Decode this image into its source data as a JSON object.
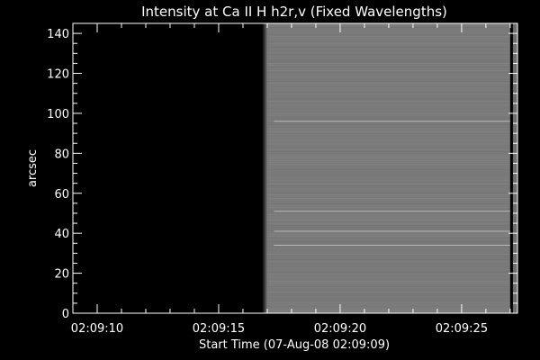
{
  "chart_data": {
    "type": "heatmap",
    "title": "Intensity at Ca II H h2r,v (Fixed Wavelengths)",
    "xlabel": "Start Time (07-Aug-08 02:09:09)",
    "ylabel": "arcsec",
    "x_tick_labels": [
      "02:09:10",
      "02:09:15",
      "02:09:20",
      "02:09:25"
    ],
    "x_tick_values_sec": [
      10,
      15,
      20,
      25
    ],
    "xlim_sec": [
      9,
      27.3
    ],
    "y_ticks": [
      0,
      20,
      40,
      60,
      80,
      100,
      120,
      140
    ],
    "ylim": [
      0,
      145
    ],
    "grid": false,
    "background_start_sec": 9,
    "signal_start_sec": 16.9,
    "signal_end_sec": 27.0,
    "background_color": "#000000",
    "signal_color": "#7a7a7a",
    "bright_rows_arcsec": [
      96,
      51,
      41,
      34
    ]
  }
}
